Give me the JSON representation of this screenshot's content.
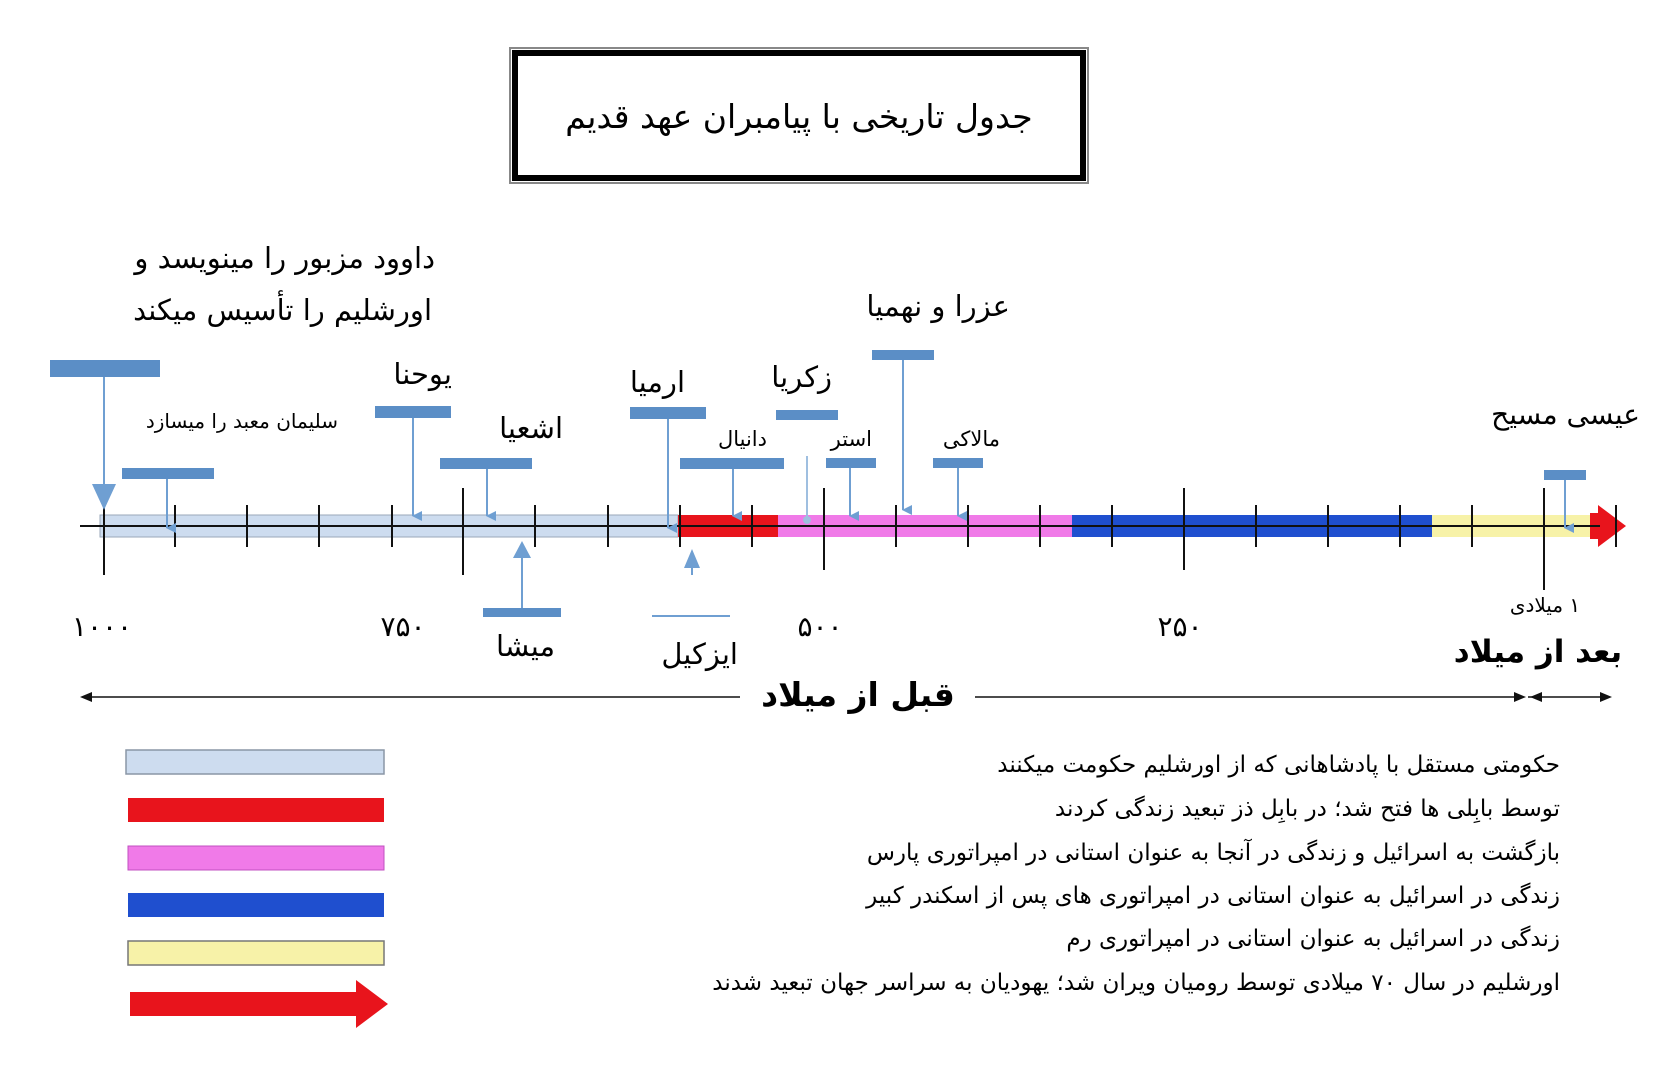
{
  "title": "جدول تاریخی با پیامبران عهد قدیم",
  "colors": {
    "bracket": "#5b8ec6",
    "arrow": "#6f9fd2",
    "axis": "#111111",
    "periods": [
      "#cddcef",
      "#e8141c",
      "#f07ae8",
      "#1f4fcf",
      "#f7f2a8"
    ],
    "final_arrow": "#e8141c"
  },
  "axis": {
    "ticks": [
      {
        "label": "۱۰۰۰"
      },
      {
        "label": "۷۵۰"
      },
      {
        "label": "۵۰۰"
      },
      {
        "label": "۲۵۰"
      },
      {
        "label": "۱ میلادی"
      }
    ],
    "bc_label": "قبل از میلاد",
    "ad_label": "بعد از میلاد"
  },
  "events_above": [
    {
      "label": "داوود مزبور را مینویسد و",
      "label2": "اورشلیم را تأسیس میکند"
    },
    {
      "label": "سلیمان معبد را میسازد"
    },
    {
      "label": "یوحنا"
    },
    {
      "label": "اشعیا"
    },
    {
      "label": "ارمیا"
    },
    {
      "label": "دانیال"
    },
    {
      "label": "زکریا"
    },
    {
      "label": "استر"
    },
    {
      "label": "عزرا و نهمیا"
    },
    {
      "label": "مالاکی"
    },
    {
      "label": "عیسی مسیح"
    }
  ],
  "events_below": [
    {
      "label": "میشا"
    },
    {
      "label": "ایزکیل"
    }
  ],
  "legend": [
    {
      "text": "حکومتی مستقل با پادشاهانی که از اورشلیم حکومت میکنند"
    },
    {
      "text": "توسط بابِلی ها فتح شد؛ در بابِل ذز تبعید زندگی کردند"
    },
    {
      "text": "بازگشت به اسرائیل و زندگی در آنجا به عنوان استانی در امپراتوری پارس"
    },
    {
      "text": "زندگی در اسرائیل به عنوان استانی در امپراتوری های پس از اسکندر کبیر"
    },
    {
      "text": "زندگی در اسرائیل به عنوان استانی در امپراتوری رم"
    },
    {
      "text": "اورشلیم در سال ۷۰ میلادی توسط رومیان ویران شد؛ یهودیان به سراسر جهان تبعید شدند"
    }
  ]
}
